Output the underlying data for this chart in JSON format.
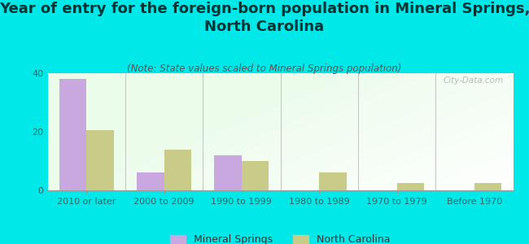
{
  "title": "Year of entry for the foreign-born population in Mineral Springs,\nNorth Carolina",
  "subtitle": "(Note: State values scaled to Mineral Springs population)",
  "categories": [
    "2010 or later",
    "2000 to 2009",
    "1990 to 1999",
    "1980 to 1989",
    "1970 to 1979",
    "Before 1970"
  ],
  "mineral_springs": [
    38,
    6,
    12,
    0,
    0,
    0
  ],
  "north_carolina": [
    20.5,
    14,
    10,
    6,
    2.5,
    2.5
  ],
  "bar_color_ms": "#c9a8e0",
  "bar_color_nc": "#c8cc88",
  "background_outer": "#00e8e8",
  "ylim": [
    0,
    40
  ],
  "yticks": [
    0,
    20,
    40
  ],
  "title_fontsize": 13,
  "title_color": "#003333",
  "subtitle_fontsize": 8.5,
  "subtitle_color": "#555555",
  "tick_fontsize": 8,
  "tick_color": "#336666",
  "legend_fontsize": 9,
  "watermark": "City-Data.com"
}
